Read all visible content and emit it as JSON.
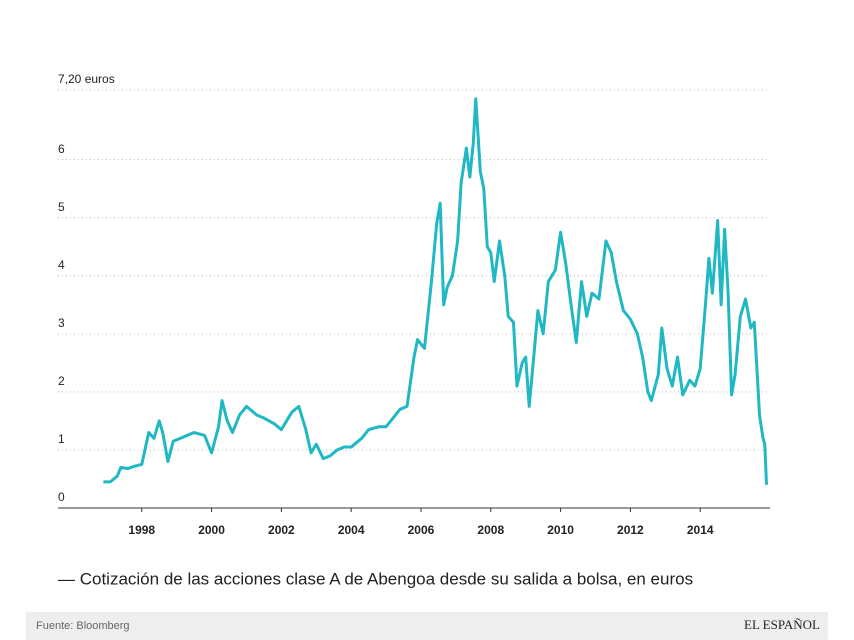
{
  "chart_data": {
    "type": "line",
    "title": "— Cotización de las acciones clase A de Abengoa desde su salida a bolsa, en euros",
    "source": "Fuente: Bloomberg",
    "brand": "EL ESPAÑOL",
    "color": "#1fb8c3",
    "grid": true,
    "xlim": [
      1995.6,
      2016.0
    ],
    "xticks": [
      1998,
      2000,
      2002,
      2004,
      2006,
      2008,
      2010,
      2012,
      2014
    ],
    "ylim": [
      0,
      7.2
    ],
    "yticks": [
      0,
      1,
      2,
      3,
      4,
      5,
      6,
      {
        "value": 7.2,
        "label": "7,20 euros"
      }
    ],
    "x": [
      1996.9,
      1997.1,
      1997.3,
      1997.4,
      1997.6,
      1997.8,
      1998.0,
      1998.2,
      1998.35,
      1998.5,
      1998.6,
      1998.75,
      1998.9,
      1999.1,
      1999.3,
      1999.5,
      1999.8,
      2000.0,
      2000.2,
      2000.3,
      2000.45,
      2000.6,
      2000.8,
      2001.0,
      2001.3,
      2001.5,
      2001.8,
      2002.0,
      2002.3,
      2002.5,
      2002.7,
      2002.85,
      2003.0,
      2003.2,
      2003.4,
      2003.6,
      2003.8,
      2004.0,
      2004.3,
      2004.5,
      2004.8,
      2005.0,
      2005.2,
      2005.4,
      2005.6,
      2005.8,
      2005.9,
      2006.1,
      2006.3,
      2006.45,
      2006.55,
      2006.65,
      2006.75,
      2006.9,
      2007.05,
      2007.15,
      2007.3,
      2007.4,
      2007.5,
      2007.57,
      2007.7,
      2007.8,
      2007.9,
      2008.0,
      2008.1,
      2008.25,
      2008.4,
      2008.5,
      2008.65,
      2008.75,
      2008.9,
      2009.0,
      2009.1,
      2009.2,
      2009.35,
      2009.5,
      2009.65,
      2009.85,
      2010.0,
      2010.15,
      2010.3,
      2010.45,
      2010.6,
      2010.75,
      2010.9,
      2011.1,
      2011.3,
      2011.45,
      2011.6,
      2011.8,
      2012.0,
      2012.2,
      2012.35,
      2012.5,
      2012.6,
      2012.8,
      2012.9,
      2013.05,
      2013.2,
      2013.35,
      2013.5,
      2013.7,
      2013.85,
      2014.0,
      2014.15,
      2014.25,
      2014.35,
      2014.5,
      2014.6,
      2014.7,
      2014.8,
      2014.9,
      2015.0,
      2015.15,
      2015.3,
      2015.45,
      2015.55,
      2015.7,
      2015.8,
      2015.85,
      2015.9
    ],
    "values": [
      0.45,
      0.45,
      0.55,
      0.7,
      0.68,
      0.72,
      0.75,
      1.3,
      1.2,
      1.5,
      1.3,
      0.8,
      1.15,
      1.2,
      1.25,
      1.3,
      1.25,
      0.95,
      1.4,
      1.85,
      1.5,
      1.3,
      1.6,
      1.75,
      1.6,
      1.55,
      1.45,
      1.35,
      1.65,
      1.75,
      1.35,
      0.95,
      1.1,
      0.85,
      0.9,
      1.0,
      1.05,
      1.05,
      1.2,
      1.35,
      1.4,
      1.4,
      1.55,
      1.7,
      1.75,
      2.6,
      2.9,
      2.75,
      3.9,
      4.9,
      5.25,
      3.5,
      3.8,
      4.0,
      4.6,
      5.6,
      6.2,
      5.7,
      6.3,
      7.05,
      5.8,
      5.5,
      4.5,
      4.4,
      3.9,
      4.6,
      4.0,
      3.3,
      3.2,
      2.1,
      2.5,
      2.6,
      1.75,
      2.4,
      3.4,
      3.0,
      3.9,
      4.1,
      4.75,
      4.2,
      3.5,
      2.85,
      3.9,
      3.3,
      3.7,
      3.6,
      4.6,
      4.4,
      3.9,
      3.4,
      3.25,
      3.0,
      2.6,
      2.0,
      1.85,
      2.3,
      3.1,
      2.4,
      2.1,
      2.6,
      1.95,
      2.2,
      2.1,
      2.4,
      3.5,
      4.3,
      3.7,
      4.95,
      3.5,
      4.8,
      3.7,
      1.95,
      2.3,
      3.3,
      3.6,
      3.1,
      3.2,
      1.6,
      1.2,
      1.1,
      0.4
    ]
  }
}
